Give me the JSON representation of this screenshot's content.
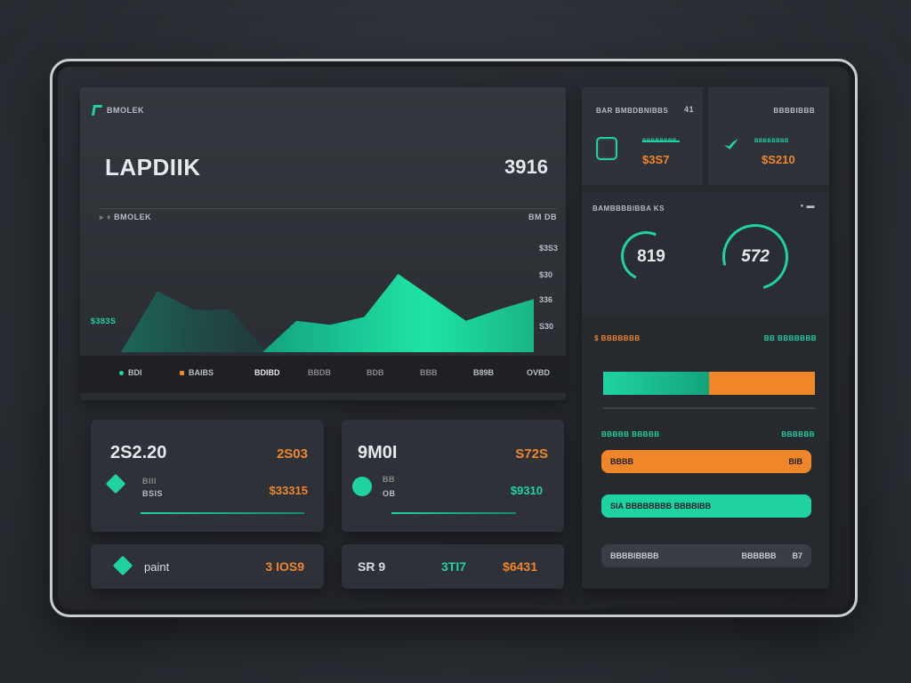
{
  "main": {
    "brand": "BMOLEK",
    "title": "LAPDIIK",
    "value": "3916",
    "chart_label_left": "BMOLEK",
    "chart_label_right": "BM DB",
    "y_left": "$383S",
    "y_ticks": [
      "$3S3",
      "$30",
      "336",
      "S30"
    ],
    "legend": [
      {
        "label": "BDI",
        "color": "#1fd3a0"
      },
      {
        "label": "BAIBS",
        "color": "#f0862a"
      },
      {
        "label": "BDIBD",
        "color": ""
      },
      {
        "label": "BBDB",
        "color": ""
      },
      {
        "label": "BDB",
        "color": ""
      },
      {
        "label": "BBB",
        "color": ""
      },
      {
        "label": "B89B",
        "color": ""
      },
      {
        "label": "OVBD",
        "color": ""
      }
    ]
  },
  "chart_data": {
    "type": "area",
    "series": [
      {
        "values": [
          0,
          78,
          54,
          54,
          0
        ]
      },
      {
        "values": [
          0,
          40,
          35,
          45,
          100,
          70,
          40,
          55,
          68
        ]
      }
    ]
  },
  "cards": [
    {
      "value": "2S2.20",
      "right": "2S03",
      "sub_label_1": "BIII",
      "sub_label_2": "BSIS",
      "sub_right": "$33315"
    },
    {
      "value": "9M0I",
      "right": "S72S",
      "sub_label_1": "BB",
      "sub_label_2": "OB",
      "sub_right": "$9310"
    },
    {
      "value": "paint",
      "right": "3 IOS9"
    },
    {
      "value": "SR 9",
      "right_teal": "3TI7",
      "right_green": "$6431"
    }
  ],
  "right": {
    "header_1": "BAR BMBDBNIBBS",
    "header_1_badge": "41",
    "header_2": "BBBBIBBB",
    "mini_1_label": "BBBBBBBB",
    "mini_1_value": "$3S7",
    "mini_2_label": "BBBBBBBB",
    "mini_2_value": "$S210",
    "gauges_header": "BAMBBBBIBBA KS",
    "gauge_1": "819",
    "gauge_2": "572",
    "bar_header_left": "$ BBBBBBB",
    "bar_header_right": "BB BBBBBBB",
    "bar_teal_pct": 0.5,
    "pill_header_left": "BBBBB BBBBB",
    "pill_header_right": "BBBBBB",
    "pill_orange_left": "BBBB",
    "pill_orange_right": "BIB",
    "pill_teal_left": "SIA BBBBBBBB BBBBIBB",
    "pill_dark_left": "BBBBIBBBB",
    "pill_dark_mid": "BBBBBB",
    "pill_dark_right": "B7",
    "colors": {
      "teal": "#1fd3a0",
      "orange": "#f0862a"
    }
  }
}
